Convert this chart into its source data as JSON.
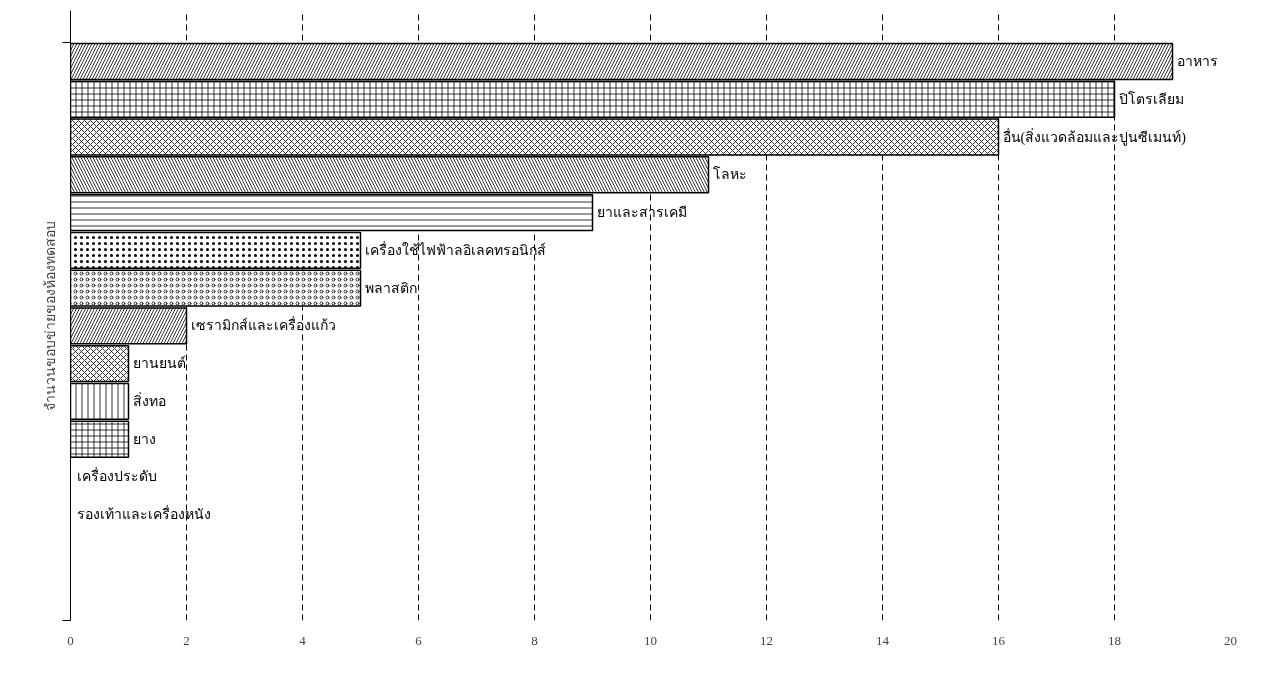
{
  "chart_data": {
    "type": "bar",
    "orientation": "horizontal",
    "ylabel": "จำนวนขอบข่ายของห้องทดสอบ",
    "categories": [
      "อาหาร",
      "ปิโตรเลียม",
      "อื่น(สิ่งแวดล้อมและปูนซีเมนท์)",
      "โลหะ",
      "ยาและสารเคมี",
      "เครื่องใช้ไฟฟ้าลอิเลคทรอนิกส์",
      "พลาสติก",
      "เซรามิกส์และเครื่องแก้ว",
      "ยานยนต์",
      "สิ่งทอ",
      "ยาง",
      "เครื่องประดับ",
      "รองเท้าและเครื่องหนัง"
    ],
    "values": [
      19,
      18,
      16,
      11,
      9,
      5,
      5,
      2,
      1,
      1,
      1,
      0,
      0
    ],
    "color": "#ffffff",
    "xlim": [
      0,
      20
    ],
    "xticks": [
      0,
      2,
      4,
      6,
      8,
      10,
      12,
      14,
      16,
      18,
      20
    ],
    "grid": "x",
    "tick_labels": "x"
  }
}
